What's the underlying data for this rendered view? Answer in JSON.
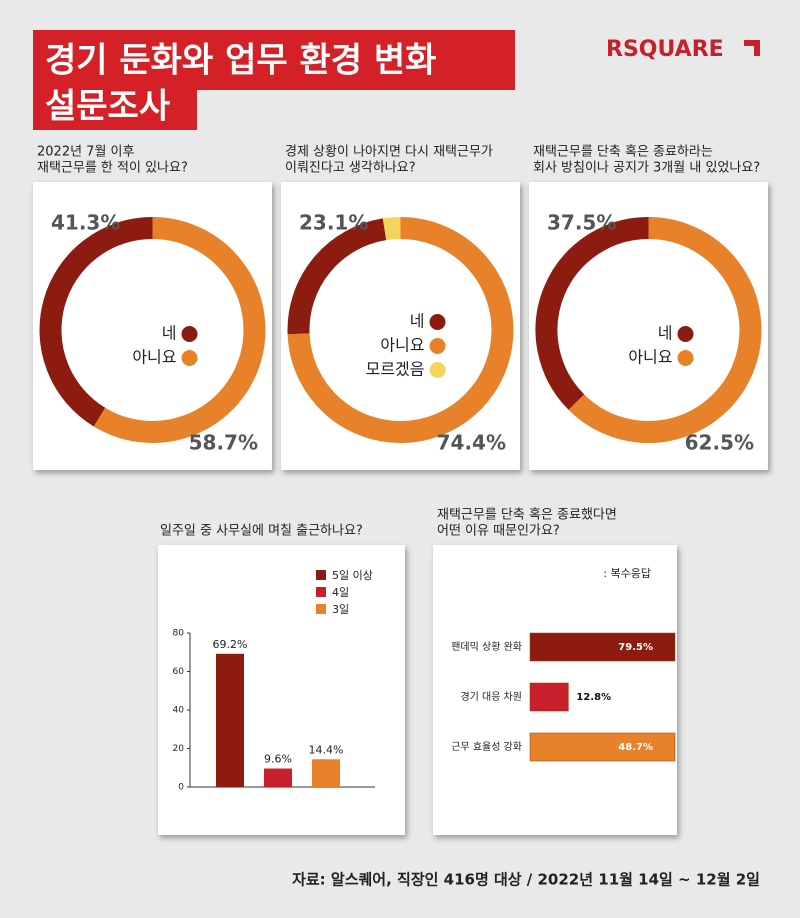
{
  "header": {
    "title_lines": [
      "경기 둔화와 업무 환경 변화",
      "설문조사"
    ],
    "logo": "RSQUARE"
  },
  "chart_data": [
    {
      "type": "donut",
      "question": [
        "2022년 7월 이후",
        "재택근무를 한 적이 있나요?"
      ],
      "categories": [
        "네",
        "아니요"
      ],
      "values": [
        41.3,
        58.7
      ],
      "value_labels": [
        "41.3%",
        "58.7%"
      ],
      "colors": [
        "#8c1c10",
        "#e8822a"
      ]
    },
    {
      "type": "donut",
      "question": [
        "경제 상황이 나아지면 다시 재택근무가",
        "이뤄진다고 생각하나요?"
      ],
      "categories": [
        "네",
        "아니요",
        "모르겠음"
      ],
      "values": [
        23.1,
        74.4,
        2.5
      ],
      "value_labels": [
        "23.1%",
        "74.4%",
        null
      ],
      "colors": [
        "#8c1c10",
        "#e8822a",
        "#f5d45c"
      ]
    },
    {
      "type": "donut",
      "question": [
        "재택근무를 단축 혹은 종료하라는",
        "회사 방침이나 공지가 3개월 내 있었나요?"
      ],
      "categories": [
        "네",
        "아니요"
      ],
      "values": [
        37.5,
        62.5
      ],
      "value_labels": [
        "37.5%",
        "62.5%"
      ],
      "colors": [
        "#8c1c10",
        "#e8822a"
      ]
    },
    {
      "type": "bar",
      "question": [
        "일주일 중 사무실에 며칠 출근하나요?"
      ],
      "categories": [
        "5일 이상",
        "4일",
        "3일"
      ],
      "values": [
        69.2,
        9.6,
        14.4
      ],
      "value_labels": [
        "69.2%",
        "9.6%",
        "14.4%"
      ],
      "colors": [
        "#8c1c10",
        "#c8202a",
        "#e8822a"
      ],
      "ylim": [
        0,
        80
      ],
      "yticks": [
        0,
        20,
        40,
        60,
        80
      ],
      "legend": "top-right"
    },
    {
      "type": "hbar",
      "question": [
        "재택근무를 단축 혹은 종료했다면",
        "어떤 이유 때문인가요?"
      ],
      "note": ": 복수응답",
      "categories": [
        "팬데믹 상황 완화",
        "경기 대응 차원",
        "근무 효율성 강화"
      ],
      "values": [
        79.5,
        12.8,
        48.7
      ],
      "value_labels": [
        "79.5%",
        "12.8%",
        "48.7%"
      ],
      "colors": [
        "#8c1c10",
        "#c8202a",
        "#e8822a"
      ],
      "xlim": [
        0,
        80
      ]
    }
  ],
  "source": "자료: 알스퀘어, 직장인 416명 대상 / 2022년 11월 14일 ~ 12월 2일"
}
